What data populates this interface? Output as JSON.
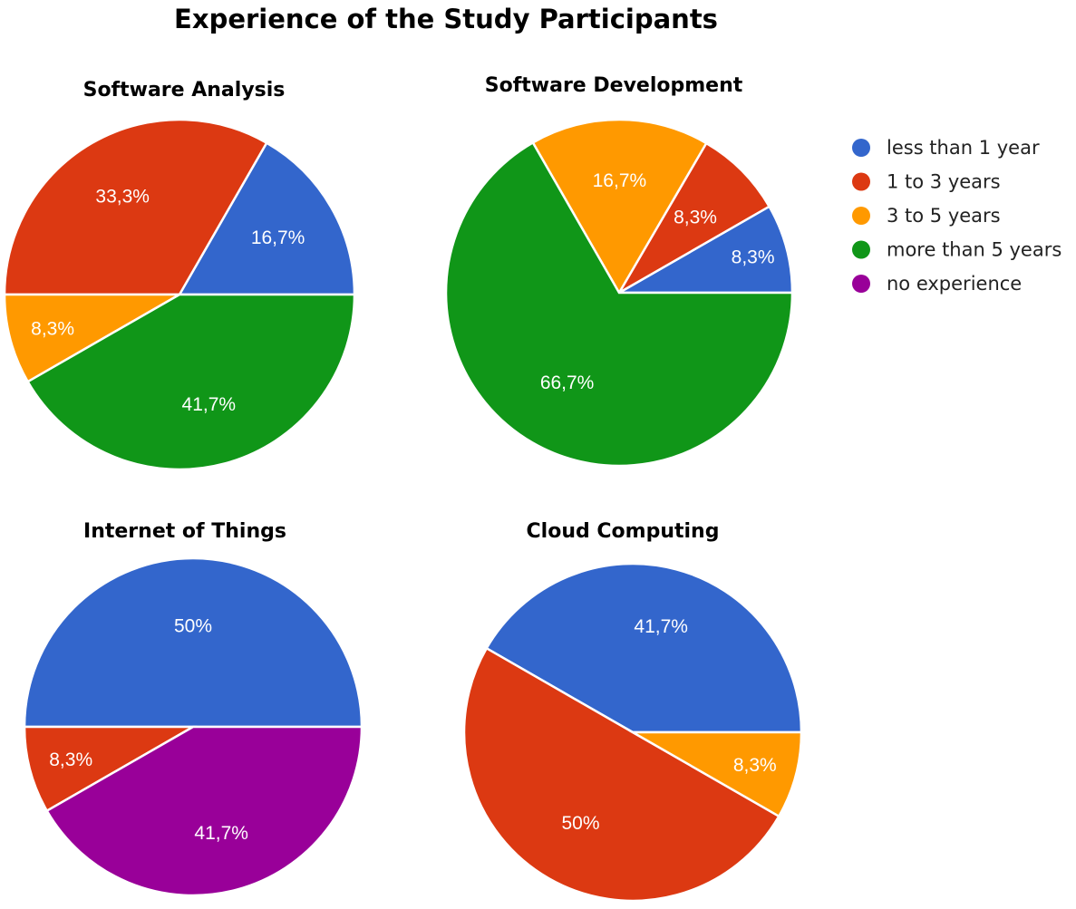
{
  "title": "Experience of the Study Participants",
  "legend": [
    {
      "key": "lt1",
      "label": "less than 1 year",
      "color": "#3366cc"
    },
    {
      "key": "y1_3",
      "label": "1 to 3 years",
      "color": "#dc3912"
    },
    {
      "key": "y3_5",
      "label": "3 to 5 years",
      "color": "#ff9900"
    },
    {
      "key": "gt5",
      "label": "more than 5 years",
      "color": "#109618"
    },
    {
      "key": "none",
      "label": "no experience",
      "color": "#990099"
    }
  ],
  "chart_data": [
    {
      "type": "pie",
      "title": "Software Analysis",
      "slices": [
        {
          "category": "less than 1 year",
          "value": 16.7,
          "label": "16,7%",
          "color": "#3366cc"
        },
        {
          "category": "1 to 3 years",
          "value": 33.3,
          "label": "33,3%",
          "color": "#dc3912"
        },
        {
          "category": "3 to 5 years",
          "value": 8.3,
          "label": "8,3%",
          "color": "#ff9900"
        },
        {
          "category": "more than 5 years",
          "value": 41.7,
          "label": "41,7%",
          "color": "#109618"
        }
      ]
    },
    {
      "type": "pie",
      "title": "Software Development",
      "slices": [
        {
          "category": "less than 1 year",
          "value": 8.3,
          "label": "8,3%",
          "color": "#3366cc"
        },
        {
          "category": "1 to 3 years",
          "value": 8.3,
          "label": "8,3%",
          "color": "#dc3912"
        },
        {
          "category": "3 to 5 years",
          "value": 16.7,
          "label": "16,7%",
          "color": "#ff9900"
        },
        {
          "category": "more than 5 years",
          "value": 66.7,
          "label": "66,7%",
          "color": "#109618"
        }
      ]
    },
    {
      "type": "pie",
      "title": "Internet of Things",
      "slices": [
        {
          "category": "less than 1 year",
          "value": 50,
          "label": "50%",
          "color": "#3366cc"
        },
        {
          "category": "1 to 3 years",
          "value": 8.3,
          "label": "8,3%",
          "color": "#dc3912"
        },
        {
          "category": "no experience",
          "value": 41.7,
          "label": "41,7%",
          "color": "#990099"
        }
      ]
    },
    {
      "type": "pie",
      "title": "Cloud Computing",
      "slices": [
        {
          "category": "less than 1 year",
          "value": 41.7,
          "label": "41,7%",
          "color": "#3366cc"
        },
        {
          "category": "1 to 3 years",
          "value": 50,
          "label": "50%",
          "color": "#dc3912"
        },
        {
          "category": "3 to 5 years",
          "value": 8.3,
          "label": "8,3%",
          "color": "#ff9900"
        }
      ]
    }
  ]
}
